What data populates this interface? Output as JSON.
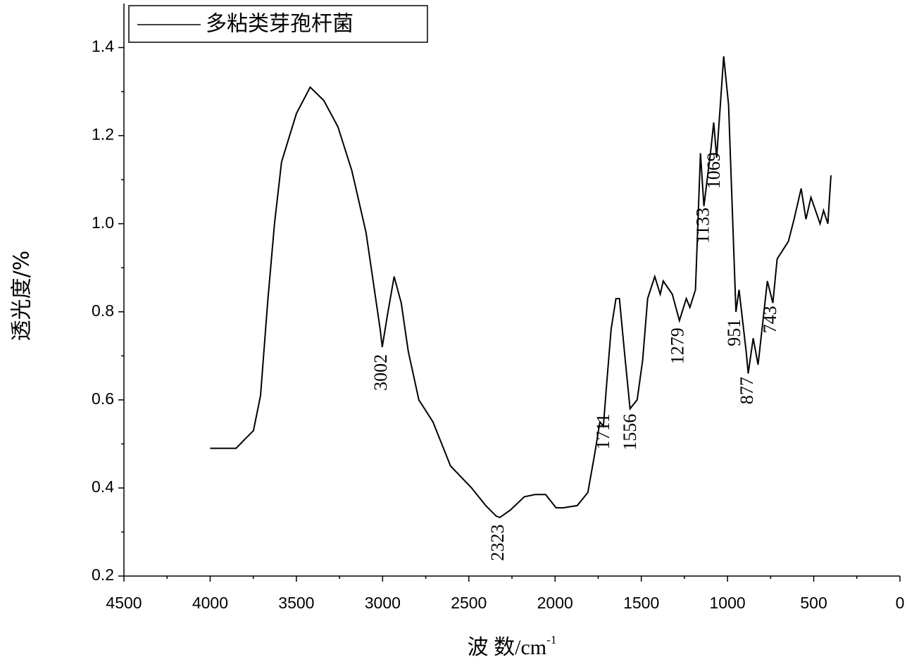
{
  "chart_data": {
    "type": "line",
    "xlabel": "波 数/cm",
    "xlabel_superscript": "-1",
    "ylabel": "透光度/%",
    "x": [
      4000,
      3900,
      3850,
      3800,
      3749,
      3708,
      3667,
      3627,
      3586,
      3500,
      3420,
      3341,
      3259,
      3178,
      3096,
      3014,
      3002,
      2973,
      2933,
      2892,
      2851,
      2790,
      2708,
      2606,
      2484,
      2402,
      2341,
      2320,
      2259,
      2178,
      2116,
      2055,
      1994,
      1953,
      1871,
      1810,
      1769,
      1740,
      1720,
      1700,
      1675,
      1647,
      1627,
      1598,
      1565,
      1524,
      1492,
      1463,
      1422,
      1390,
      1373,
      1320,
      1279,
      1239,
      1218,
      1186,
      1157,
      1137,
      1096,
      1080,
      1063,
      1022,
      994,
      951,
      933,
      892,
      880,
      851,
      823,
      769,
      737,
      712,
      647,
      614,
      573,
      545,
      516,
      463,
      443,
      418,
      400
    ],
    "series": [
      {
        "name": "多粘类芽孢杆菌",
        "color": "#000000",
        "values": [
          0.49,
          0.49,
          0.49,
          0.51,
          0.53,
          0.61,
          0.82,
          1.0,
          1.14,
          1.25,
          1.31,
          1.28,
          1.22,
          1.12,
          0.98,
          0.76,
          0.72,
          0.79,
          0.88,
          0.82,
          0.71,
          0.6,
          0.55,
          0.45,
          0.4,
          0.36,
          0.336,
          0.333,
          0.35,
          0.38,
          0.385,
          0.385,
          0.355,
          0.355,
          0.36,
          0.39,
          0.48,
          0.55,
          0.54,
          0.64,
          0.76,
          0.83,
          0.83,
          0.71,
          0.58,
          0.6,
          0.69,
          0.83,
          0.88,
          0.84,
          0.87,
          0.84,
          0.78,
          0.83,
          0.81,
          0.85,
          1.16,
          1.04,
          1.17,
          1.23,
          1.15,
          1.38,
          1.27,
          0.8,
          0.85,
          0.71,
          0.66,
          0.74,
          0.68,
          0.87,
          0.82,
          0.92,
          0.96,
          1.01,
          1.08,
          1.01,
          1.06,
          1.0,
          1.03,
          1.0,
          1.11
        ]
      }
    ],
    "annotations": [
      3002,
      2323,
      1711,
      1556,
      1279,
      1133,
      1069,
      951,
      877,
      743
    ],
    "xlim": [
      4500,
      0
    ],
    "xticks": [
      4500,
      4000,
      3500,
      3000,
      2500,
      2000,
      1500,
      1000,
      500,
      0
    ],
    "ylim": [
      0.2,
      1.5
    ],
    "yticks": [
      0.2,
      0.4,
      0.6,
      0.8,
      {
        "value": 1,
        "label": "1.0"
      },
      1.2,
      1.4
    ],
    "legend": "top-left"
  }
}
